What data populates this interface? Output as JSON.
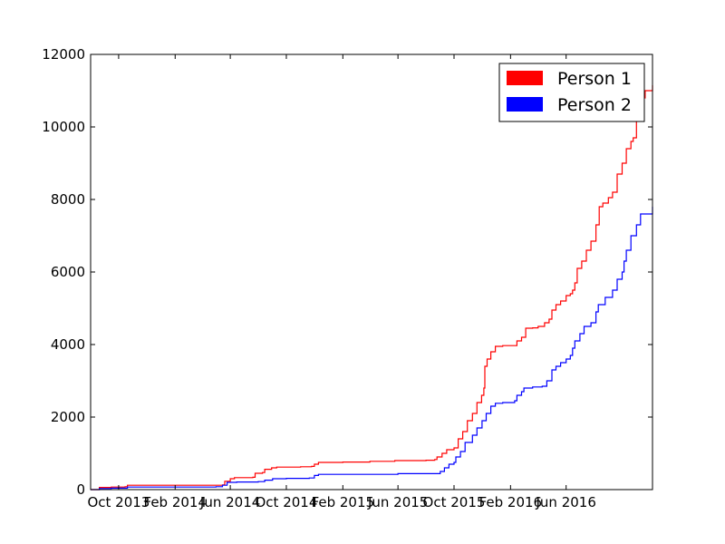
{
  "chart_data": {
    "type": "line",
    "title": "",
    "xlabel": "",
    "ylabel": "",
    "ylim": [
      0,
      12000
    ],
    "xlim": [
      "2013-08-01",
      "2016-12-06"
    ],
    "grid": false,
    "legend_position": "top-right",
    "y_ticks": [
      0,
      2000,
      4000,
      6000,
      8000,
      10000,
      12000
    ],
    "x_ticks": [
      {
        "date": "2013-10-01",
        "label": "Oct 2013"
      },
      {
        "date": "2014-02-01",
        "label": "Feb 2014"
      },
      {
        "date": "2014-06-01",
        "label": "Jun 2014"
      },
      {
        "date": "2014-10-01",
        "label": "Oct 2014"
      },
      {
        "date": "2015-02-01",
        "label": "Feb 2015"
      },
      {
        "date": "2015-06-01",
        "label": "Jun 2015"
      },
      {
        "date": "2015-10-01",
        "label": "Oct 2015"
      },
      {
        "date": "2016-02-01",
        "label": "Feb 2016"
      },
      {
        "date": "2016-06-01",
        "label": "Jun 2016"
      }
    ],
    "series": [
      {
        "name": "Person 1",
        "color": "#ff0000",
        "points": [
          [
            "2013-08-01",
            0
          ],
          [
            "2013-08-20",
            60
          ],
          [
            "2013-09-15",
            70
          ],
          [
            "2013-10-15",
            80
          ],
          [
            "2013-10-20",
            120
          ],
          [
            "2014-01-01",
            120
          ],
          [
            "2014-04-01",
            120
          ],
          [
            "2014-05-15",
            130
          ],
          [
            "2014-05-20",
            230
          ],
          [
            "2014-06-01",
            300
          ],
          [
            "2014-06-10",
            330
          ],
          [
            "2014-07-20",
            340
          ],
          [
            "2014-07-25",
            450
          ],
          [
            "2014-08-10",
            470
          ],
          [
            "2014-08-15",
            560
          ],
          [
            "2014-08-30",
            600
          ],
          [
            "2014-09-10",
            620
          ],
          [
            "2014-10-01",
            620
          ],
          [
            "2014-11-01",
            630
          ],
          [
            "2014-11-25",
            640
          ],
          [
            "2014-12-01",
            700
          ],
          [
            "2014-12-10",
            750
          ],
          [
            "2015-02-01",
            760
          ],
          [
            "2015-04-01",
            780
          ],
          [
            "2015-05-20",
            780
          ],
          [
            "2015-05-25",
            800
          ],
          [
            "2015-06-01",
            800
          ],
          [
            "2015-08-01",
            810
          ],
          [
            "2015-08-20",
            830
          ],
          [
            "2015-08-25",
            900
          ],
          [
            "2015-09-05",
            1000
          ],
          [
            "2015-09-15",
            1100
          ],
          [
            "2015-10-01",
            1150
          ],
          [
            "2015-10-10",
            1400
          ],
          [
            "2015-10-20",
            1600
          ],
          [
            "2015-10-30",
            1900
          ],
          [
            "2015-11-10",
            2100
          ],
          [
            "2015-11-20",
            2400
          ],
          [
            "2015-11-30",
            2600
          ],
          [
            "2015-12-05",
            2800
          ],
          [
            "2015-12-07",
            3400
          ],
          [
            "2015-12-12",
            3600
          ],
          [
            "2015-12-20",
            3800
          ],
          [
            "2015-12-30",
            3950
          ],
          [
            "2016-01-15",
            3970
          ],
          [
            "2016-02-05",
            3970
          ],
          [
            "2016-02-15",
            4100
          ],
          [
            "2016-02-25",
            4200
          ],
          [
            "2016-03-05",
            4450
          ],
          [
            "2016-03-20",
            4460
          ],
          [
            "2016-04-01",
            4500
          ],
          [
            "2016-04-15",
            4600
          ],
          [
            "2016-04-25",
            4700
          ],
          [
            "2016-05-01",
            4950
          ],
          [
            "2016-05-10",
            5100
          ],
          [
            "2016-05-20",
            5200
          ],
          [
            "2016-06-01",
            5350
          ],
          [
            "2016-06-10",
            5400
          ],
          [
            "2016-06-15",
            5500
          ],
          [
            "2016-06-20",
            5700
          ],
          [
            "2016-06-25",
            6100
          ],
          [
            "2016-07-05",
            6300
          ],
          [
            "2016-07-15",
            6600
          ],
          [
            "2016-07-25",
            6850
          ],
          [
            "2016-08-05",
            7300
          ],
          [
            "2016-08-12",
            7800
          ],
          [
            "2016-08-20",
            7900
          ],
          [
            "2016-09-01",
            8050
          ],
          [
            "2016-09-10",
            8200
          ],
          [
            "2016-09-20",
            8700
          ],
          [
            "2016-10-01",
            9000
          ],
          [
            "2016-10-10",
            9400
          ],
          [
            "2016-10-20",
            9600
          ],
          [
            "2016-10-25",
            9700
          ],
          [
            "2016-11-01",
            10400
          ],
          [
            "2016-11-05",
            10800
          ],
          [
            "2016-11-20",
            11000
          ],
          [
            "2016-12-06",
            11150
          ]
        ]
      },
      {
        "name": "Person 2",
        "color": "#0000ff",
        "points": [
          [
            "2013-08-01",
            0
          ],
          [
            "2013-08-20",
            30
          ],
          [
            "2013-09-15",
            40
          ],
          [
            "2013-10-20",
            70
          ],
          [
            "2014-01-01",
            70
          ],
          [
            "2014-05-01",
            80
          ],
          [
            "2014-05-15",
            120
          ],
          [
            "2014-05-25",
            200
          ],
          [
            "2014-06-15",
            210
          ],
          [
            "2014-08-01",
            220
          ],
          [
            "2014-08-15",
            260
          ],
          [
            "2014-09-01",
            300
          ],
          [
            "2014-10-01",
            310
          ],
          [
            "2014-11-20",
            320
          ],
          [
            "2014-12-01",
            390
          ],
          [
            "2014-12-10",
            420
          ],
          [
            "2015-02-01",
            420
          ],
          [
            "2015-06-01",
            440
          ],
          [
            "2015-08-20",
            440
          ],
          [
            "2015-09-01",
            500
          ],
          [
            "2015-09-10",
            600
          ],
          [
            "2015-09-20",
            700
          ],
          [
            "2015-10-01",
            750
          ],
          [
            "2015-10-05",
            900
          ],
          [
            "2015-10-15",
            1050
          ],
          [
            "2015-10-25",
            1300
          ],
          [
            "2015-11-10",
            1500
          ],
          [
            "2015-11-20",
            1700
          ],
          [
            "2015-12-01",
            1900
          ],
          [
            "2015-12-10",
            2100
          ],
          [
            "2015-12-20",
            2300
          ],
          [
            "2015-12-30",
            2380
          ],
          [
            "2016-01-15",
            2400
          ],
          [
            "2016-02-10",
            2450
          ],
          [
            "2016-02-15",
            2600
          ],
          [
            "2016-02-25",
            2700
          ],
          [
            "2016-03-01",
            2800
          ],
          [
            "2016-03-20",
            2830
          ],
          [
            "2016-04-10",
            2850
          ],
          [
            "2016-04-20",
            3000
          ],
          [
            "2016-05-01",
            3300
          ],
          [
            "2016-05-10",
            3400
          ],
          [
            "2016-05-20",
            3500
          ],
          [
            "2016-06-01",
            3600
          ],
          [
            "2016-06-10",
            3700
          ],
          [
            "2016-06-15",
            3900
          ],
          [
            "2016-06-20",
            4100
          ],
          [
            "2016-07-01",
            4300
          ],
          [
            "2016-07-10",
            4500
          ],
          [
            "2016-07-25",
            4600
          ],
          [
            "2016-08-05",
            4900
          ],
          [
            "2016-08-10",
            5100
          ],
          [
            "2016-08-25",
            5300
          ],
          [
            "2016-09-10",
            5500
          ],
          [
            "2016-09-20",
            5800
          ],
          [
            "2016-10-01",
            6000
          ],
          [
            "2016-10-05",
            6300
          ],
          [
            "2016-10-10",
            6600
          ],
          [
            "2016-10-20",
            7000
          ],
          [
            "2016-11-01",
            7300
          ],
          [
            "2016-11-10",
            7600
          ],
          [
            "2016-12-06",
            7800
          ]
        ]
      }
    ]
  }
}
